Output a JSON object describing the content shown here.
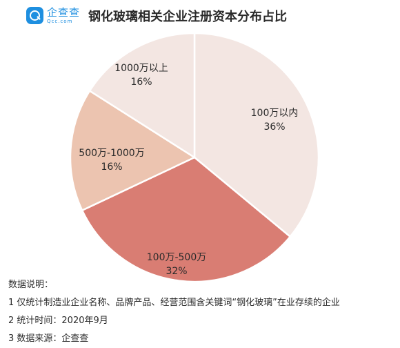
{
  "header": {
    "logo_text": "企查查",
    "logo_sub": "Qcc.com",
    "title": "钢化玻璃相关企业注册资本分布占比"
  },
  "chart_data": {
    "type": "pie",
    "title": "钢化玻璃相关企业注册资本分布占比",
    "slices": [
      {
        "label": "100万以内",
        "value": 36,
        "value_text": "36%",
        "color": "#f3e6e2"
      },
      {
        "label": "100万-500万",
        "value": 32,
        "value_text": "32%",
        "color": "#d97d73"
      },
      {
        "label": "500万-1000万",
        "value": 16,
        "value_text": "16%",
        "color": "#ecc4b0"
      },
      {
        "label": "1000万以上",
        "value": 16,
        "value_text": "16%",
        "color": "#f3e6e2"
      }
    ],
    "start": "12 o'clock",
    "direction": "clockwise"
  },
  "notes": {
    "heading": "数据说明：",
    "lines": [
      "1 仅统计制造业企业名称、品牌产品、经营范围含关键词“钢化玻璃”在业存续的企业",
      "2 统计时间：2020年9月",
      "3 数据来源：企查查"
    ]
  }
}
